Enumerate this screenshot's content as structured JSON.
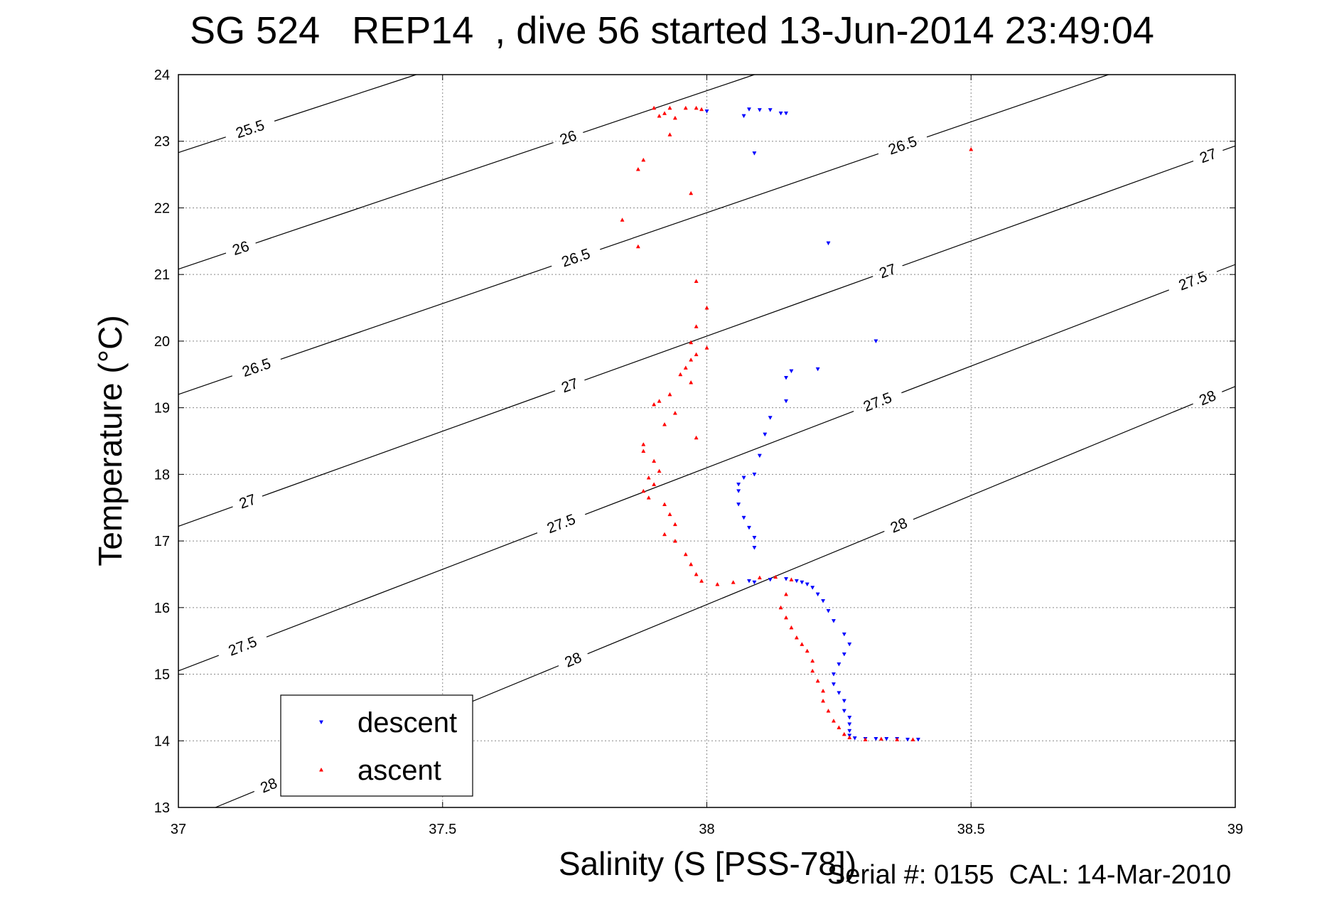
{
  "title": "SG 524   REP14  , dive 56 started 13-Jun-2014 23:49:04",
  "footer": "Serial #: 0155  CAL: 14-Mar-2010",
  "chart_data": {
    "type": "scatter",
    "xlabel": "Salinity (S [PSS-78])",
    "ylabel": "Temperature (°C)",
    "xlim": [
      37,
      39
    ],
    "ylim": [
      13,
      24
    ],
    "xticks": [
      37,
      37.5,
      38,
      38.5,
      39
    ],
    "xtick_labels": [
      "37",
      "37.5",
      "38",
      "38.5",
      "39"
    ],
    "yticks": [
      13,
      14,
      15,
      16,
      17,
      18,
      19,
      20,
      21,
      22,
      23,
      24
    ],
    "ytick_labels": [
      "13",
      "14",
      "15",
      "16",
      "17",
      "18",
      "19",
      "20",
      "21",
      "22",
      "23",
      "24"
    ],
    "grid": true,
    "legend_position": "bottom-left",
    "isopycnals": [
      {
        "label": "25.5",
        "start": [
          37,
          22.83
        ],
        "end": [
          37.45,
          24.0
        ],
        "label_positions": [
          [
            37.135,
            23.2
          ]
        ]
      },
      {
        "label": "26",
        "start": [
          37,
          21.08
        ],
        "end": [
          38.09,
          24.0
        ],
        "label_positions": [
          [
            37.12,
            21.35
          ],
          [
            37.74,
            23.0
          ]
        ]
      },
      {
        "label": "26.5",
        "start": [
          37,
          19.2
        ],
        "end": [
          38.76,
          24.0
        ],
        "label_positions": [
          [
            37.15,
            19.55
          ],
          [
            37.75,
            21.3
          ],
          [
            38.37,
            22.95
          ]
        ]
      },
      {
        "label": "27",
        "start": [
          37,
          17.22
        ],
        "end": [
          39,
          22.93
        ],
        "label_positions": [
          [
            37.135,
            17.5
          ],
          [
            37.74,
            19.35
          ],
          [
            38.34,
            21.1
          ],
          [
            38.95,
            22.75
          ]
        ]
      },
      {
        "label": "27.5",
        "start": [
          37,
          15.05
        ],
        "end": [
          39,
          21.15
        ],
        "label_positions": [
          [
            37.125,
            15.35
          ],
          [
            37.72,
            17.35
          ],
          [
            38.32,
            19.15
          ],
          [
            38.92,
            20.9
          ]
        ]
      },
      {
        "label": "28",
        "start": [
          37.07,
          13.0
        ],
        "end": [
          39,
          19.32
        ],
        "label_positions": [
          [
            37.17,
            13.35
          ],
          [
            37.74,
            15.35
          ],
          [
            38.36,
            17.3
          ],
          [
            38.95,
            19.1
          ]
        ]
      }
    ],
    "series": [
      {
        "name": "descent",
        "color": "#0000ff",
        "marker": "triangle-down",
        "points": [
          [
            38.0,
            23.45
          ],
          [
            38.08,
            23.48
          ],
          [
            38.1,
            23.47
          ],
          [
            38.12,
            23.47
          ],
          [
            38.14,
            23.42
          ],
          [
            38.15,
            23.42
          ],
          [
            38.07,
            23.38
          ],
          [
            38.09,
            22.82
          ],
          [
            38.23,
            21.47
          ],
          [
            38.32,
            20.0
          ],
          [
            38.21,
            19.58
          ],
          [
            38.16,
            19.55
          ],
          [
            38.15,
            19.45
          ],
          [
            38.15,
            19.1
          ],
          [
            38.12,
            18.85
          ],
          [
            38.11,
            18.6
          ],
          [
            38.1,
            18.28
          ],
          [
            38.09,
            18.0
          ],
          [
            38.07,
            17.95
          ],
          [
            38.06,
            17.85
          ],
          [
            38.06,
            17.75
          ],
          [
            38.06,
            17.55
          ],
          [
            38.07,
            17.35
          ],
          [
            38.08,
            17.2
          ],
          [
            38.09,
            17.05
          ],
          [
            38.09,
            16.9
          ],
          [
            38.08,
            16.4
          ],
          [
            38.09,
            16.38
          ],
          [
            38.12,
            16.42
          ],
          [
            38.15,
            16.43
          ],
          [
            38.17,
            16.4
          ],
          [
            38.18,
            16.38
          ],
          [
            38.19,
            16.35
          ],
          [
            38.2,
            16.3
          ],
          [
            38.21,
            16.2
          ],
          [
            38.22,
            16.1
          ],
          [
            38.23,
            15.95
          ],
          [
            38.24,
            15.8
          ],
          [
            38.26,
            15.6
          ],
          [
            38.27,
            15.45
          ],
          [
            38.26,
            15.3
          ],
          [
            38.25,
            15.15
          ],
          [
            38.24,
            15.0
          ],
          [
            38.24,
            14.85
          ],
          [
            38.25,
            14.72
          ],
          [
            38.26,
            14.6
          ],
          [
            38.26,
            14.45
          ],
          [
            38.27,
            14.35
          ],
          [
            38.27,
            14.25
          ],
          [
            38.27,
            14.15
          ],
          [
            38.27,
            14.08
          ],
          [
            38.28,
            14.04
          ],
          [
            38.3,
            14.03
          ],
          [
            38.32,
            14.03
          ],
          [
            38.34,
            14.03
          ],
          [
            38.36,
            14.03
          ],
          [
            38.38,
            14.02
          ],
          [
            38.4,
            14.02
          ]
        ]
      },
      {
        "name": "ascent",
        "color": "#ff0000",
        "marker": "triangle-up",
        "points": [
          [
            37.9,
            23.5
          ],
          [
            37.93,
            23.5
          ],
          [
            37.96,
            23.5
          ],
          [
            37.98,
            23.5
          ],
          [
            37.99,
            23.48
          ],
          [
            37.92,
            23.42
          ],
          [
            37.94,
            23.35
          ],
          [
            37.91,
            23.38
          ],
          [
            37.93,
            23.1
          ],
          [
            37.88,
            22.72
          ],
          [
            37.87,
            22.58
          ],
          [
            37.97,
            22.22
          ],
          [
            37.84,
            21.82
          ],
          [
            37.87,
            21.42
          ],
          [
            38.5,
            22.88
          ],
          [
            37.98,
            20.9
          ],
          [
            38.0,
            20.5
          ],
          [
            37.98,
            20.22
          ],
          [
            37.97,
            19.98
          ],
          [
            38.0,
            19.9
          ],
          [
            37.98,
            19.8
          ],
          [
            37.97,
            19.72
          ],
          [
            37.96,
            19.6
          ],
          [
            37.95,
            19.5
          ],
          [
            37.97,
            19.38
          ],
          [
            37.93,
            19.2
          ],
          [
            37.91,
            19.1
          ],
          [
            37.9,
            19.05
          ],
          [
            37.94,
            18.92
          ],
          [
            37.92,
            18.75
          ],
          [
            37.98,
            18.55
          ],
          [
            37.88,
            18.45
          ],
          [
            37.88,
            18.35
          ],
          [
            37.9,
            18.2
          ],
          [
            37.91,
            18.05
          ],
          [
            37.89,
            17.95
          ],
          [
            37.9,
            17.85
          ],
          [
            37.88,
            17.75
          ],
          [
            37.89,
            17.65
          ],
          [
            37.92,
            17.55
          ],
          [
            37.93,
            17.4
          ],
          [
            37.94,
            17.25
          ],
          [
            37.92,
            17.1
          ],
          [
            37.94,
            17.0
          ],
          [
            37.96,
            16.8
          ],
          [
            37.97,
            16.65
          ],
          [
            37.98,
            16.5
          ],
          [
            37.99,
            16.4
          ],
          [
            38.02,
            16.35
          ],
          [
            38.05,
            16.38
          ],
          [
            38.1,
            16.45
          ],
          [
            38.13,
            16.46
          ],
          [
            38.16,
            16.42
          ],
          [
            38.15,
            16.2
          ],
          [
            38.14,
            16.0
          ],
          [
            38.15,
            15.85
          ],
          [
            38.16,
            15.7
          ],
          [
            38.17,
            15.55
          ],
          [
            38.18,
            15.45
          ],
          [
            38.19,
            15.35
          ],
          [
            38.2,
            15.2
          ],
          [
            38.2,
            15.05
          ],
          [
            38.21,
            14.9
          ],
          [
            38.22,
            14.75
          ],
          [
            38.22,
            14.6
          ],
          [
            38.23,
            14.45
          ],
          [
            38.24,
            14.3
          ],
          [
            38.25,
            14.2
          ],
          [
            38.26,
            14.1
          ],
          [
            38.27,
            14.05
          ],
          [
            38.3,
            14.02
          ],
          [
            38.33,
            14.03
          ],
          [
            38.36,
            14.02
          ],
          [
            38.39,
            14.02
          ]
        ]
      }
    ]
  }
}
